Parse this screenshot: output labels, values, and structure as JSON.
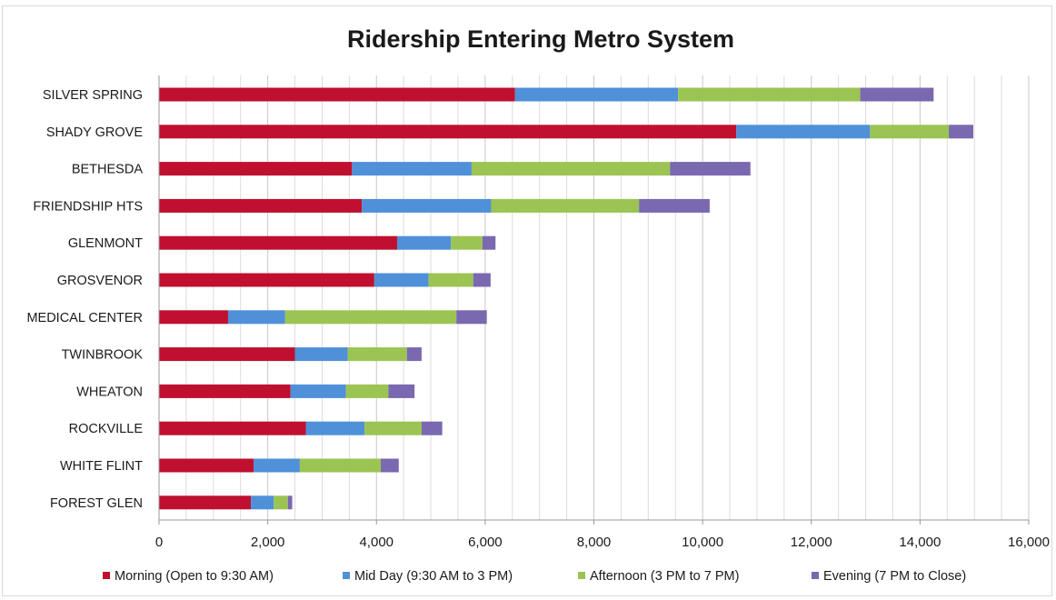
{
  "chart_data": {
    "type": "bar",
    "orientation": "horizontal",
    "stacked": true,
    "title": "Ridership Entering Metro System",
    "xlabel": "",
    "ylabel": "",
    "xlim": [
      0,
      16000
    ],
    "x_ticks": [
      "0",
      "2,000",
      "4,000",
      "6,000",
      "8,000",
      "10,000",
      "12,000",
      "14,000",
      "16,000"
    ],
    "grid": true,
    "legend_position": "bottom",
    "categories": [
      "SILVER SPRING",
      "SHADY GROVE",
      "BETHESDA",
      "FRIENDSHIP HTS",
      "GLENMONT",
      "GROSVENOR",
      "MEDICAL CENTER",
      "TWINBROOK",
      "WHEATON",
      "ROCKVILLE",
      "WHITE FLINT",
      "FOREST GLEN"
    ],
    "series": [
      {
        "name": "Morning (Open to 9:30 AM)",
        "color": "#c0102f",
        "values": [
          6550,
          10620,
          3550,
          3730,
          4380,
          3960,
          1270,
          2500,
          2420,
          2700,
          1740,
          1690
        ]
      },
      {
        "name": "Mid Day (9:30 AM to 3 PM)",
        "color": "#4f90d9",
        "values": [
          3000,
          2460,
          2200,
          2380,
          990,
          1000,
          1050,
          970,
          1020,
          1080,
          850,
          420
        ]
      },
      {
        "name": "Afternoon (3 PM to 7 PM)",
        "color": "#9bc453",
        "values": [
          3350,
          1450,
          3650,
          2720,
          580,
          820,
          3150,
          1090,
          780,
          1050,
          1490,
          260
        ]
      },
      {
        "name": "Evening (7 PM to Close)",
        "color": "#7a68b0",
        "values": [
          1350,
          450,
          1480,
          1300,
          240,
          320,
          560,
          270,
          480,
          380,
          330,
          80
        ]
      }
    ]
  }
}
